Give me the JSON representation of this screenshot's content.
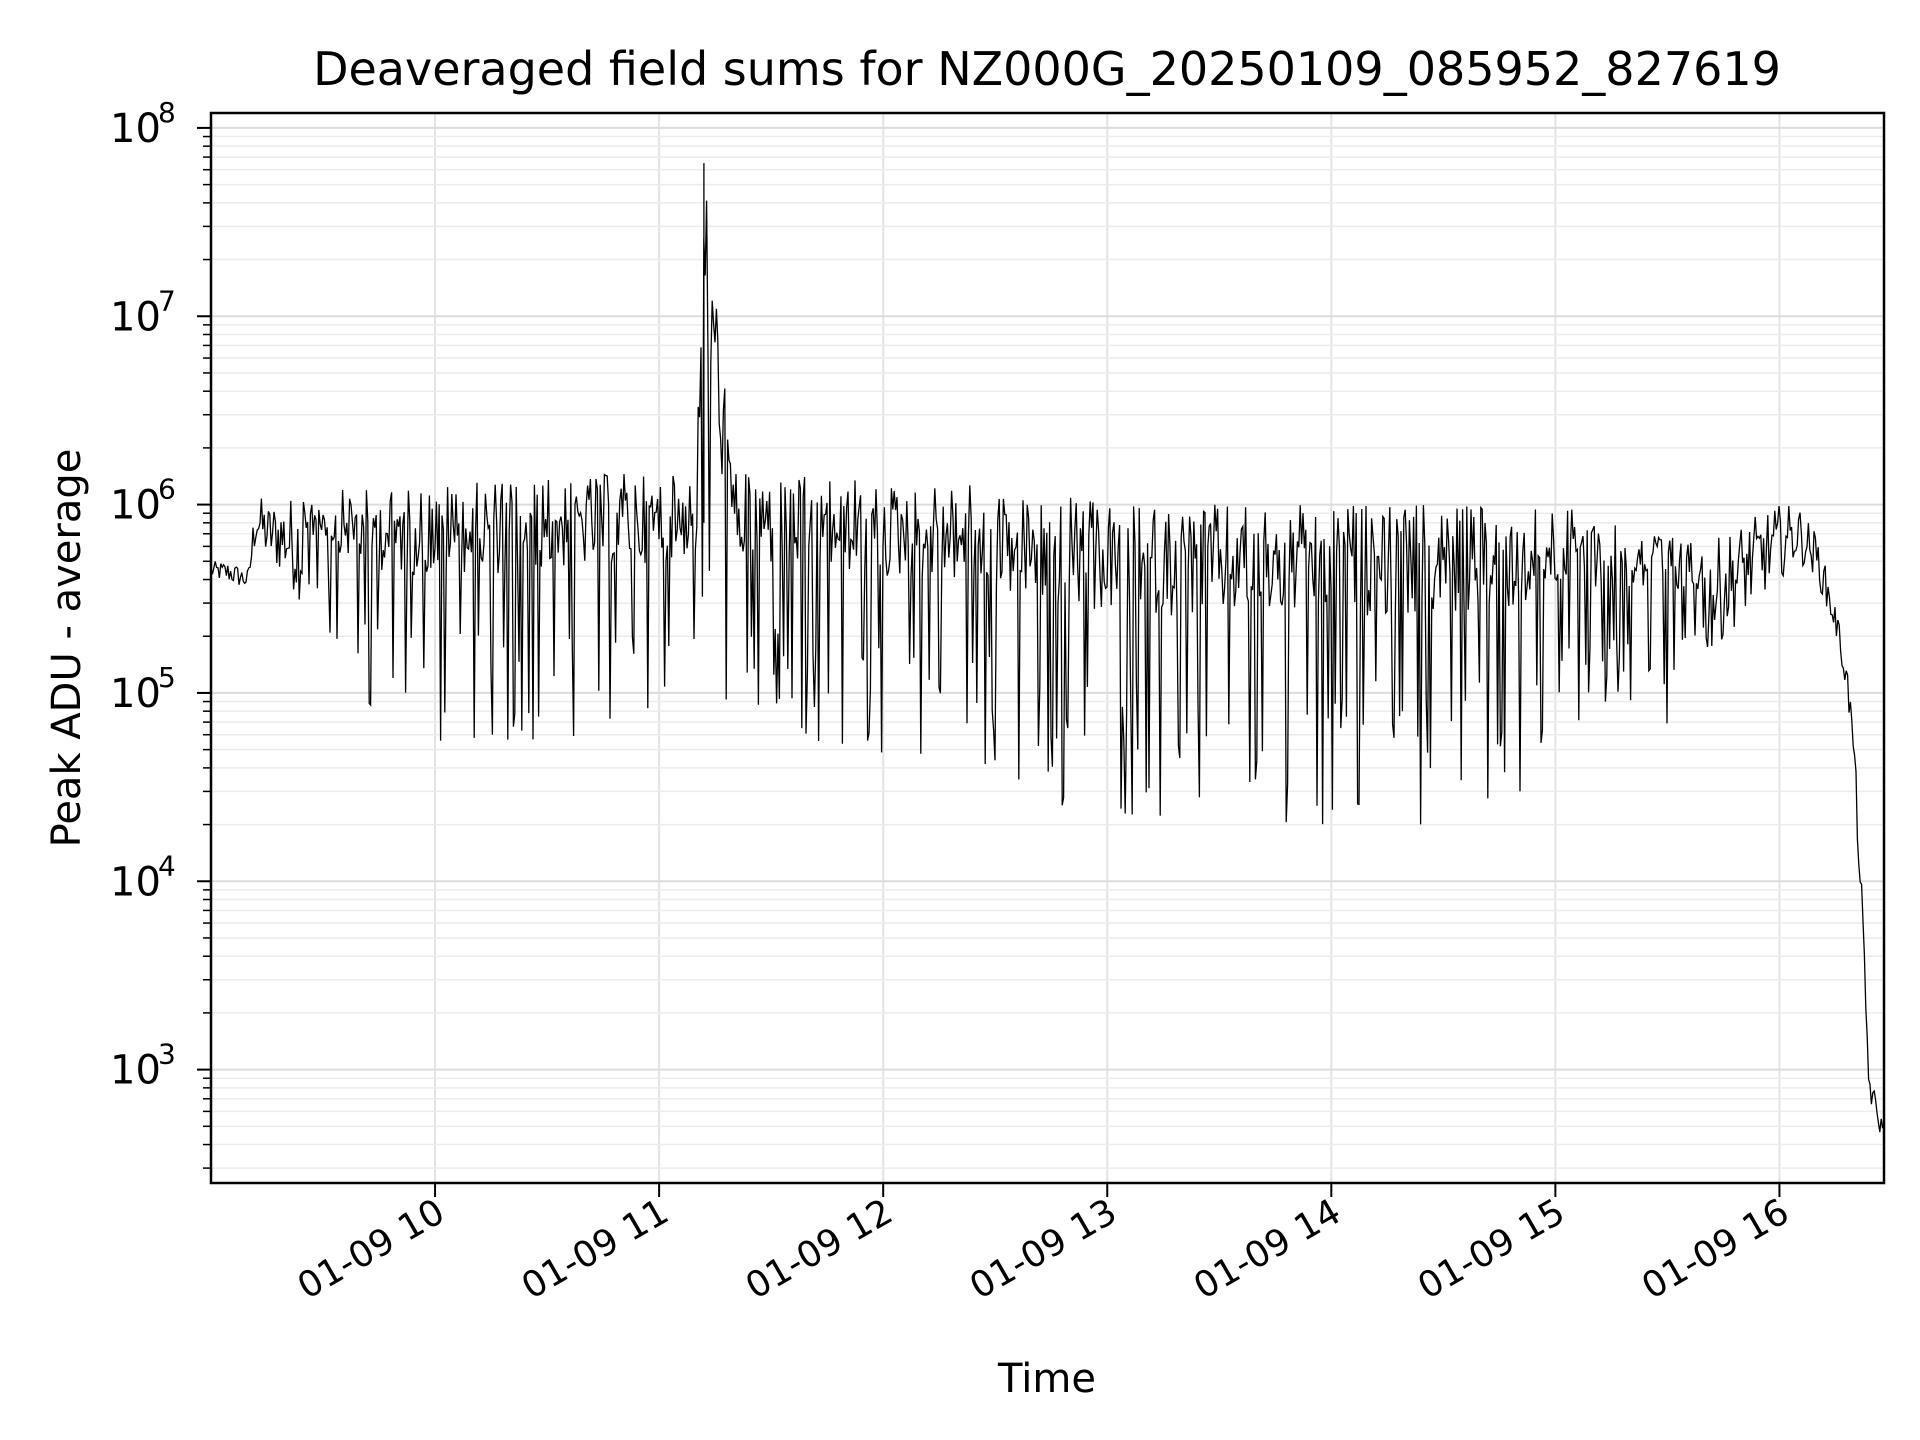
{
  "chart_data": {
    "type": "line",
    "title": "Deaveraged field sums for NZ000G_20250109_085952_827619",
    "xlabel": "Time",
    "ylabel": "Peak ADU - average",
    "yscale": "log",
    "ylim": [
      250,
      120000000
    ],
    "xlim": [
      "2025-01-09 09:00",
      "2025-01-09 16:28"
    ],
    "grid": true,
    "color": "#000000",
    "x_ticks": [
      {
        "at": "2025-01-09 10:00",
        "label": "01-09 10"
      },
      {
        "at": "2025-01-09 11:00",
        "label": "01-09 11"
      },
      {
        "at": "2025-01-09 12:00",
        "label": "01-09 12"
      },
      {
        "at": "2025-01-09 13:00",
        "label": "01-09 13"
      },
      {
        "at": "2025-01-09 14:00",
        "label": "01-09 14"
      },
      {
        "at": "2025-01-09 15:00",
        "label": "01-09 15"
      },
      {
        "at": "2025-01-09 16:00",
        "label": "01-09 16"
      }
    ],
    "y_ticks": [
      {
        "value": 1000,
        "base": "10",
        "exp": "3"
      },
      {
        "value": 10000,
        "base": "10",
        "exp": "4"
      },
      {
        "value": 100000,
        "base": "10",
        "exp": "5"
      },
      {
        "value": 1000000,
        "base": "10",
        "exp": "6"
      },
      {
        "value": 10000000,
        "base": "10",
        "exp": "7"
      },
      {
        "value": 100000000,
        "base": "10",
        "exp": "8"
      }
    ],
    "series": [
      {
        "x": [
          "2025-01-09 09:00",
          "2025-01-09 09:05",
          "2025-01-09 09:10",
          "2025-01-09 09:12",
          "2025-01-09 09:15",
          "2025-01-09 09:20",
          "2025-01-09 09:30",
          "2025-01-09 09:40",
          "2025-01-09 09:50",
          "2025-01-09 10:00",
          "2025-01-09 10:10",
          "2025-01-09 10:20",
          "2025-01-09 10:30",
          "2025-01-09 10:40",
          "2025-01-09 10:50",
          "2025-01-09 11:00",
          "2025-01-09 11:10",
          "2025-01-09 11:12",
          "2025-01-09 11:20",
          "2025-01-09 11:30",
          "2025-01-09 11:40",
          "2025-01-09 11:50",
          "2025-01-09 12:00",
          "2025-01-09 12:10",
          "2025-01-09 12:20",
          "2025-01-09 12:30",
          "2025-01-09 12:40",
          "2025-01-09 12:50",
          "2025-01-09 13:00",
          "2025-01-09 13:10",
          "2025-01-09 13:20",
          "2025-01-09 13:30",
          "2025-01-09 13:40",
          "2025-01-09 13:50",
          "2025-01-09 14:00",
          "2025-01-09 14:10",
          "2025-01-09 14:20",
          "2025-01-09 14:30",
          "2025-01-09 14:40",
          "2025-01-09 14:50",
          "2025-01-09 15:00",
          "2025-01-09 15:10",
          "2025-01-09 15:20",
          "2025-01-09 15:30",
          "2025-01-09 15:40",
          "2025-01-09 15:50",
          "2025-01-09 16:00",
          "2025-01-09 16:05",
          "2025-01-09 16:10",
          "2025-01-09 16:15",
          "2025-01-09 16:18",
          "2025-01-09 16:20",
          "2025-01-09 16:22",
          "2025-01-09 16:24",
          "2025-01-09 16:26",
          "2025-01-09 16:28"
        ],
        "upper": [
          500000,
          500000,
          450000,
          1200000,
          1000000,
          1100000,
          1200000,
          1200000,
          1200000,
          1300000,
          1300000,
          1400000,
          1400000,
          1400000,
          1500000,
          1400000,
          1500000,
          65000000,
          1500000,
          1400000,
          1400000,
          1400000,
          1300000,
          1300000,
          1300000,
          1200000,
          1100000,
          1100000,
          1000000,
          1000000,
          1000000,
          1000000,
          1000000,
          1000000,
          1000000,
          1000000,
          1000000,
          1000000,
          1000000,
          1000000,
          1000000,
          900000,
          800000,
          700000,
          600000,
          800000,
          1000000,
          1000000,
          700000,
          300000,
          150000,
          60000,
          10000,
          1000,
          700,
          500
        ],
        "lower": [
          400000,
          380000,
          350000,
          600000,
          500000,
          400000,
          200000,
          80000,
          60000,
          50000,
          45000,
          50000,
          55000,
          60000,
          60000,
          70000,
          80000,
          80000,
          70000,
          60000,
          55000,
          50000,
          45000,
          45000,
          40000,
          35000,
          25000,
          22000,
          22000,
          22000,
          20000,
          20000,
          20000,
          20000,
          20000,
          20000,
          20000,
          20000,
          20000,
          25000,
          50000,
          70000,
          80000,
          60000,
          150000,
          250000,
          400000,
          500000,
          400000,
          200000,
          100000,
          40000,
          5000,
          700,
          500,
          400
        ]
      }
    ]
  }
}
